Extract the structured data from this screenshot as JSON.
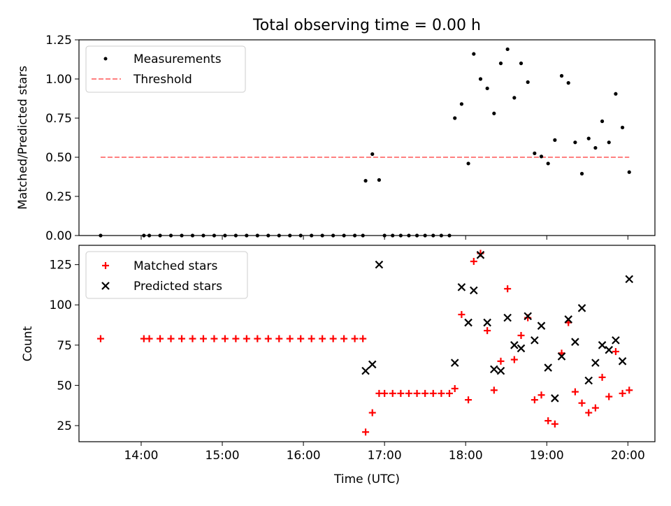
{
  "figure_title": "Total observing time = 0.00 h",
  "colors": {
    "measurements": "#000000",
    "threshold": "#ff8080",
    "matched": "#ff0000",
    "predicted": "#000000"
  },
  "chart_data": [
    {
      "type": "scatter",
      "ylabel": "Matched/Predicted stars",
      "xlim": [
        "13:14",
        "20:20"
      ],
      "ylim": [
        0,
        1.25
      ],
      "y_ticks": [
        "0.00",
        "0.25",
        "0.50",
        "0.75",
        "1.00",
        "1.25"
      ],
      "legend": {
        "placement": "top-left",
        "entries": [
          "Measurements",
          "Threshold"
        ]
      },
      "series": [
        {
          "name": "Measurements",
          "marker": "dot",
          "points": [
            [
              "13:30",
              0
            ],
            [
              "14:02",
              0
            ],
            [
              "14:06",
              0
            ],
            [
              "14:14",
              0
            ],
            [
              "14:22",
              0
            ],
            [
              "14:30",
              0
            ],
            [
              "14:38",
              0
            ],
            [
              "14:46",
              0
            ],
            [
              "14:54",
              0
            ],
            [
              "15:02",
              0
            ],
            [
              "15:10",
              0
            ],
            [
              "15:18",
              0
            ],
            [
              "15:26",
              0
            ],
            [
              "15:34",
              0
            ],
            [
              "15:42",
              0
            ],
            [
              "15:50",
              0
            ],
            [
              "15:58",
              0
            ],
            [
              "16:06",
              0
            ],
            [
              "16:14",
              0
            ],
            [
              "16:22",
              0
            ],
            [
              "16:30",
              0
            ],
            [
              "16:38",
              0
            ],
            [
              "16:44",
              0
            ],
            [
              "16:46",
              0.35
            ],
            [
              "16:51",
              0.52
            ],
            [
              "16:56",
              0.355
            ],
            [
              "17:00",
              0
            ],
            [
              "17:06",
              0
            ],
            [
              "17:12",
              0
            ],
            [
              "17:18",
              0
            ],
            [
              "17:24",
              0
            ],
            [
              "17:30",
              0
            ],
            [
              "17:36",
              0
            ],
            [
              "17:42",
              0
            ],
            [
              "17:48",
              0
            ],
            [
              "17:52",
              0.75
            ],
            [
              "17:57",
              0.84
            ],
            [
              "18:02",
              0.46
            ],
            [
              "18:06",
              1.16
            ],
            [
              "18:11",
              1.0
            ],
            [
              "18:16",
              0.94
            ],
            [
              "18:21",
              0.78
            ],
            [
              "18:26",
              1.1
            ],
            [
              "18:31",
              1.19
            ],
            [
              "18:36",
              0.88
            ],
            [
              "18:41",
              1.1
            ],
            [
              "18:46",
              0.98
            ],
            [
              "18:51",
              0.525
            ],
            [
              "18:56",
              0.505
            ],
            [
              "19:01",
              0.46
            ],
            [
              "19:06",
              0.61
            ],
            [
              "19:11",
              1.02
            ],
            [
              "19:16",
              0.975
            ],
            [
              "19:21",
              0.595
            ],
            [
              "19:26",
              0.395
            ],
            [
              "19:31",
              0.62
            ],
            [
              "19:36",
              0.56
            ],
            [
              "19:41",
              0.73
            ],
            [
              "19:46",
              0.595
            ],
            [
              "19:51",
              0.905
            ],
            [
              "19:56",
              0.69
            ],
            [
              "20:01",
              0.405
            ]
          ]
        },
        {
          "name": "Threshold",
          "style": "dashed-line",
          "points": [
            [
              "13:30",
              0.5
            ],
            [
              "20:01",
              0.5
            ]
          ]
        }
      ]
    },
    {
      "type": "scatter",
      "xlabel": "Time (UTC)",
      "ylabel": "Count",
      "xlim": [
        "13:14",
        "20:20"
      ],
      "ylim": [
        15,
        137
      ],
      "y_ticks": [
        "25",
        "50",
        "75",
        "100",
        "125"
      ],
      "x_ticks": [
        "14:00",
        "15:00",
        "16:00",
        "17:00",
        "18:00",
        "19:00",
        "20:00"
      ],
      "legend": {
        "placement": "top-left",
        "entries": [
          "Matched stars",
          "Predicted stars"
        ]
      },
      "series": [
        {
          "name": "Matched stars",
          "marker": "plus",
          "points": [
            [
              "13:30",
              79
            ],
            [
              "14:02",
              79
            ],
            [
              "14:06",
              79
            ],
            [
              "14:14",
              79
            ],
            [
              "14:22",
              79
            ],
            [
              "14:30",
              79
            ],
            [
              "14:38",
              79
            ],
            [
              "14:46",
              79
            ],
            [
              "14:54",
              79
            ],
            [
              "15:02",
              79
            ],
            [
              "15:10",
              79
            ],
            [
              "15:18",
              79
            ],
            [
              "15:26",
              79
            ],
            [
              "15:34",
              79
            ],
            [
              "15:42",
              79
            ],
            [
              "15:50",
              79
            ],
            [
              "15:58",
              79
            ],
            [
              "16:06",
              79
            ],
            [
              "16:14",
              79
            ],
            [
              "16:22",
              79
            ],
            [
              "16:30",
              79
            ],
            [
              "16:38",
              79
            ],
            [
              "16:44",
              79
            ],
            [
              "16:46",
              21
            ],
            [
              "16:51",
              33
            ],
            [
              "16:56",
              45
            ],
            [
              "17:00",
              45
            ],
            [
              "17:06",
              45
            ],
            [
              "17:12",
              45
            ],
            [
              "17:18",
              45
            ],
            [
              "17:24",
              45
            ],
            [
              "17:30",
              45
            ],
            [
              "17:36",
              45
            ],
            [
              "17:42",
              45
            ],
            [
              "17:48",
              45
            ],
            [
              "17:52",
              48
            ],
            [
              "17:57",
              94
            ],
            [
              "18:02",
              41
            ],
            [
              "18:06",
              127
            ],
            [
              "18:11",
              132
            ],
            [
              "18:16",
              84
            ],
            [
              "18:21",
              47
            ],
            [
              "18:26",
              65
            ],
            [
              "18:31",
              110
            ],
            [
              "18:36",
              66
            ],
            [
              "18:41",
              81
            ],
            [
              "18:46",
              92
            ],
            [
              "18:51",
              41
            ],
            [
              "18:56",
              44
            ],
            [
              "19:01",
              28
            ],
            [
              "19:06",
              26
            ],
            [
              "19:11",
              70
            ],
            [
              "19:16",
              89
            ],
            [
              "19:21",
              46
            ],
            [
              "19:26",
              39
            ],
            [
              "19:31",
              33
            ],
            [
              "19:36",
              36
            ],
            [
              "19:41",
              55
            ],
            [
              "19:46",
              43
            ],
            [
              "19:51",
              71
            ],
            [
              "19:56",
              45
            ],
            [
              "20:01",
              47
            ]
          ]
        },
        {
          "name": "Predicted stars",
          "marker": "x",
          "points": [
            [
              "16:46",
              59
            ],
            [
              "16:51",
              63
            ],
            [
              "16:56",
              125
            ],
            [
              "17:52",
              64
            ],
            [
              "17:57",
              111
            ],
            [
              "18:02",
              89
            ],
            [
              "18:06",
              109
            ],
            [
              "18:11",
              131
            ],
            [
              "18:16",
              89
            ],
            [
              "18:21",
              60
            ],
            [
              "18:26",
              59
            ],
            [
              "18:31",
              92
            ],
            [
              "18:36",
              75
            ],
            [
              "18:41",
              73
            ],
            [
              "18:46",
              93
            ],
            [
              "18:51",
              78
            ],
            [
              "18:56",
              87
            ],
            [
              "19:01",
              61
            ],
            [
              "19:06",
              42
            ],
            [
              "19:11",
              68
            ],
            [
              "19:16",
              91
            ],
            [
              "19:21",
              77
            ],
            [
              "19:26",
              98
            ],
            [
              "19:31",
              53
            ],
            [
              "19:36",
              64
            ],
            [
              "19:41",
              75
            ],
            [
              "19:46",
              72
            ],
            [
              "19:51",
              78
            ],
            [
              "19:56",
              65
            ],
            [
              "20:01",
              116
            ]
          ]
        }
      ]
    }
  ]
}
